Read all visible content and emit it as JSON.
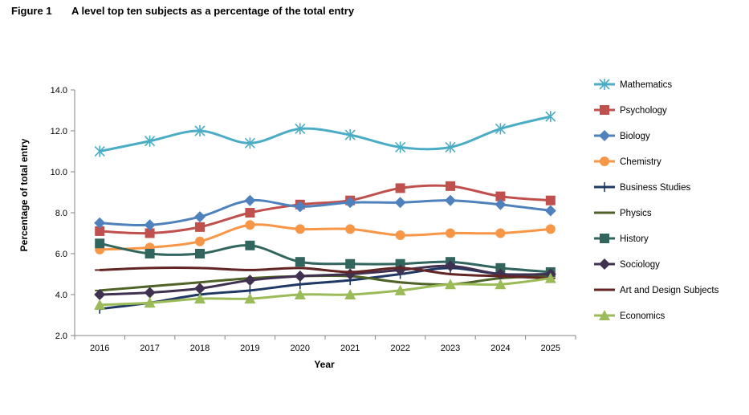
{
  "figure": {
    "number": "Figure 1",
    "title": "A level top ten subjects as a percentage of the total entry"
  },
  "chart_data": {
    "type": "line",
    "title": "A level top ten subjects as a percentage of the total entry",
    "xlabel": "Year",
    "ylabel": "Percentage of total entry",
    "ylim": [
      2.0,
      14.0
    ],
    "yticks": [
      "2.0",
      "4.0",
      "6.0",
      "8.0",
      "10.0",
      "12.0",
      "14.0"
    ],
    "grid": false,
    "legend": "right",
    "categories": [
      "2016",
      "2017",
      "2018",
      "2019",
      "2020",
      "2021",
      "2022",
      "2023",
      "2024",
      "2025"
    ],
    "series": [
      {
        "name": "Mathematics",
        "color": "#4bacc6",
        "marker": "star",
        "values": [
          11.0,
          11.5,
          12.0,
          11.4,
          12.1,
          11.8,
          11.2,
          11.2,
          12.1,
          12.7
        ]
      },
      {
        "name": "Psychology",
        "color": "#c0504d",
        "marker": "square",
        "values": [
          7.1,
          7.0,
          7.3,
          8.0,
          8.4,
          8.6,
          9.2,
          9.3,
          8.8,
          8.6
        ]
      },
      {
        "name": "Biology",
        "color": "#4f81bd",
        "marker": "diamond",
        "values": [
          7.5,
          7.4,
          7.8,
          8.6,
          8.3,
          8.5,
          8.5,
          8.6,
          8.4,
          8.1
        ]
      },
      {
        "name": "Chemistry",
        "color": "#f79646",
        "marker": "circle",
        "values": [
          6.2,
          6.3,
          6.6,
          7.4,
          7.2,
          7.2,
          6.9,
          7.0,
          7.0,
          7.2
        ]
      },
      {
        "name": "Business Studies",
        "color": "#1f3864",
        "marker": "plus",
        "values": [
          3.3,
          3.6,
          4.0,
          4.2,
          4.5,
          4.7,
          5.0,
          5.3,
          5.0,
          5.0
        ]
      },
      {
        "name": "Physics",
        "color": "#4f6228",
        "marker": "dash",
        "values": [
          4.2,
          4.4,
          4.6,
          4.8,
          4.9,
          4.9,
          4.6,
          4.5,
          4.8,
          4.9
        ]
      },
      {
        "name": "History",
        "color": "#31655e",
        "marker": "square",
        "values": [
          6.5,
          6.0,
          6.0,
          6.4,
          5.6,
          5.5,
          5.5,
          5.6,
          5.3,
          5.1
        ]
      },
      {
        "name": "Sociology",
        "color": "#403151",
        "marker": "diamond",
        "values": [
          4.0,
          4.1,
          4.3,
          4.7,
          4.9,
          5.0,
          5.2,
          5.4,
          5.0,
          5.0
        ]
      },
      {
        "name": "Art and Design Subjects",
        "color": "#632523",
        "marker": "dash",
        "values": [
          5.2,
          5.3,
          5.3,
          5.2,
          5.3,
          5.1,
          5.3,
          5.0,
          4.9,
          4.8
        ]
      },
      {
        "name": "Economics",
        "color": "#9bbb59",
        "marker": "triangle",
        "values": [
          3.5,
          3.6,
          3.8,
          3.8,
          4.0,
          4.0,
          4.2,
          4.5,
          4.5,
          4.8
        ]
      }
    ]
  }
}
